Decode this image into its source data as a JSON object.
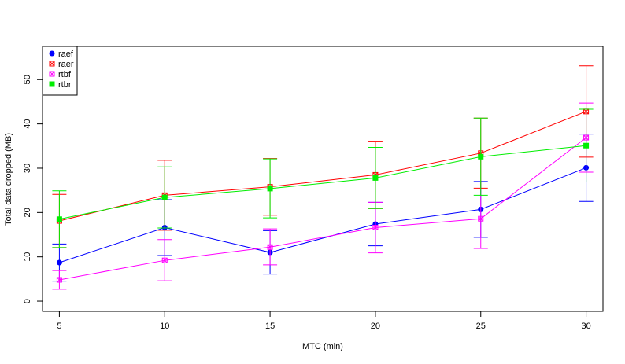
{
  "chart_data": {
    "type": "line",
    "title": "",
    "xlabel": "MTC (min)",
    "ylabel": "Total data dropped (MB)",
    "x": [
      5,
      10,
      15,
      20,
      25,
      30
    ],
    "xlim": [
      4.2,
      30.8
    ],
    "ylim": [
      -2.3,
      57.5
    ],
    "xticks": [
      5,
      10,
      15,
      20,
      25,
      30
    ],
    "yticks": [
      0,
      10,
      20,
      30,
      40,
      50
    ],
    "grid": false,
    "legend_position": "top-left",
    "error_bars": true,
    "series": [
      {
        "name": "raef",
        "color": "#0000ff",
        "marker": "filled-circle",
        "values": [
          8.7,
          16.6,
          11.0,
          17.4,
          20.7,
          30.1
        ],
        "lower": [
          4.5,
          10.3,
          6.1,
          12.5,
          14.4,
          22.5
        ],
        "upper": [
          12.9,
          22.9,
          15.9,
          22.3,
          27.0,
          37.7
        ]
      },
      {
        "name": "raer",
        "color": "#ff0000",
        "marker": "crossed-square",
        "values": [
          18.1,
          23.9,
          25.8,
          28.5,
          33.4,
          42.8
        ],
        "lower": [
          12.1,
          16.0,
          19.4,
          20.9,
          25.5,
          32.5
        ],
        "upper": [
          24.1,
          31.8,
          32.2,
          36.1,
          41.3,
          53.1
        ]
      },
      {
        "name": "rtbf",
        "color": "#ff00ff",
        "marker": "crossed-square",
        "values": [
          4.8,
          9.2,
          12.2,
          16.6,
          18.6,
          36.9
        ],
        "lower": [
          2.7,
          4.6,
          8.2,
          10.9,
          11.9,
          29.1
        ],
        "upper": [
          6.9,
          13.9,
          16.3,
          22.3,
          25.3,
          44.7
        ]
      },
      {
        "name": "rtbr",
        "color": "#00ee00",
        "marker": "filled-square",
        "values": [
          18.5,
          23.4,
          25.4,
          27.8,
          32.6,
          35.1
        ],
        "lower": [
          12.1,
          16.5,
          18.8,
          20.9,
          23.9,
          26.9
        ],
        "upper": [
          24.9,
          30.3,
          32.1,
          34.7,
          41.3,
          43.3
        ]
      }
    ]
  }
}
